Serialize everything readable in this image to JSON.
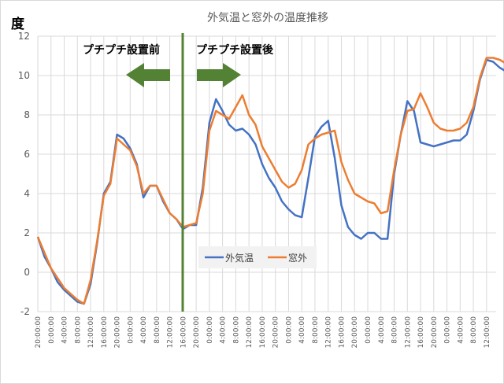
{
  "chart_data": {
    "type": "line",
    "title": "外気温と窓外の温度推移",
    "ylabel": "度",
    "xlabel": "",
    "ylim": [
      -2,
      12
    ],
    "yticks": [
      12,
      10,
      8,
      6,
      4,
      2,
      0,
      -2
    ],
    "grid": true,
    "legend_position": "inside-bottom-center",
    "x_tick_labels": [
      "20:00:00",
      "0:00:00",
      "4:00:00",
      "8:00:00",
      "12:00:00",
      "16:00:00",
      "20:00:00",
      "0:00:00",
      "4:00:00",
      "8:00:00",
      "12:00:00",
      "16:00:00",
      "20:00:00",
      "0:00:00",
      "4:00:00",
      "8:00:00",
      "12:00:00",
      "16:00:00",
      "20:00:00",
      "0:00:00",
      "4:00:00",
      "8:00:00",
      "12:00:00",
      "16:00:00",
      "20:00:00",
      "0:00:00",
      "4:00:00",
      "8:00:00",
      "12:00:00",
      "16:00:00",
      "20:00:00",
      "0:00:00",
      "4:00:00",
      "8:00:00",
      "12:00:00"
    ],
    "x_hours": [
      0,
      2,
      4,
      6,
      8,
      10,
      12,
      14,
      16,
      18,
      20,
      22,
      24,
      26,
      28,
      30,
      32,
      34,
      36,
      38,
      40,
      42,
      44,
      46,
      48,
      50,
      52,
      54,
      56,
      58,
      60,
      62,
      64,
      66,
      68,
      70,
      72,
      74,
      76,
      78,
      80,
      82,
      84,
      86,
      88,
      90,
      92,
      94,
      96,
      98,
      100,
      102,
      104,
      106,
      108,
      110,
      112,
      114,
      116,
      118,
      120,
      122,
      124,
      126,
      128,
      130,
      132,
      134,
      136,
      138,
      140,
      142,
      144,
      146,
      148,
      150,
      152,
      154,
      156
    ],
    "series": [
      {
        "name": "外気温",
        "color": "#4472C4",
        "values": [
          1.8,
          0.8,
          0.2,
          -0.5,
          -0.9,
          -1.2,
          -1.5,
          -1.6,
          -0.6,
          1.5,
          4.0,
          4.6,
          7.0,
          6.8,
          6.3,
          5.5,
          3.8,
          4.4,
          4.4,
          3.6,
          3.0,
          2.7,
          2.2,
          2.4,
          2.4,
          4.3,
          7.6,
          8.8,
          8.2,
          7.5,
          7.2,
          7.3,
          7.0,
          6.5,
          5.5,
          4.8,
          4.3,
          3.6,
          3.2,
          2.9,
          2.8,
          4.8,
          6.9,
          7.4,
          7.7,
          5.8,
          3.4,
          2.3,
          1.9,
          1.7,
          2.0,
          2.0,
          1.7,
          1.7,
          5.0,
          7.0,
          8.7,
          8.2,
          6.6,
          6.5,
          6.4,
          6.5,
          6.6,
          6.7,
          6.7,
          7.0,
          8.2,
          9.8,
          10.8,
          10.7,
          10.4,
          10.2,
          9.9,
          9.7,
          9.3,
          9.0,
          9.2,
          10.0,
          10.6
        ],
        "values_note": "sampled every 2 hours from the plotted curve"
      },
      {
        "name": "窓外",
        "color": "#ED7D31",
        "values": [
          1.8,
          1.0,
          0.2,
          -0.3,
          -0.8,
          -1.1,
          -1.4,
          -1.6,
          -0.4,
          1.6,
          3.9,
          4.5,
          6.8,
          6.5,
          6.2,
          5.4,
          4.0,
          4.4,
          4.4,
          3.7,
          3.0,
          2.7,
          2.3,
          2.4,
          2.5,
          4.0,
          7.2,
          8.2,
          8.0,
          7.8,
          8.4,
          9.0,
          8.0,
          7.5,
          6.4,
          5.8,
          5.2,
          4.6,
          4.3,
          4.5,
          5.2,
          6.5,
          6.8,
          7.0,
          7.1,
          7.2,
          5.6,
          4.7,
          4.0,
          3.8,
          3.6,
          3.5,
          3.0,
          3.1,
          5.2,
          7.0,
          8.2,
          8.3,
          9.1,
          8.4,
          7.6,
          7.3,
          7.2,
          7.2,
          7.3,
          7.6,
          8.4,
          9.9,
          10.9,
          10.9,
          10.8,
          10.6,
          10.4,
          10.1,
          9.7,
          9.4,
          9.7,
          10.3,
          10.9
        ]
      }
    ],
    "annotations": [
      {
        "text": "プチプチ設置前",
        "arrow": "left"
      },
      {
        "text": "プチプチ設置後",
        "arrow": "right"
      },
      {
        "type": "vertical-line",
        "at": "16:00:00 (day 3)",
        "color": "#548235"
      }
    ]
  },
  "labels": {
    "title": "外気温と窓外の温度推移",
    "unit": "度",
    "before": "プチプチ設置前",
    "after": "プチプチ設置後",
    "legend_outdoor": "外気温",
    "legend_window": "窓外"
  },
  "colors": {
    "outdoor": "#4472C4",
    "window": "#ED7D31",
    "divider": "#548235",
    "grid": "#D9D9D9"
  }
}
